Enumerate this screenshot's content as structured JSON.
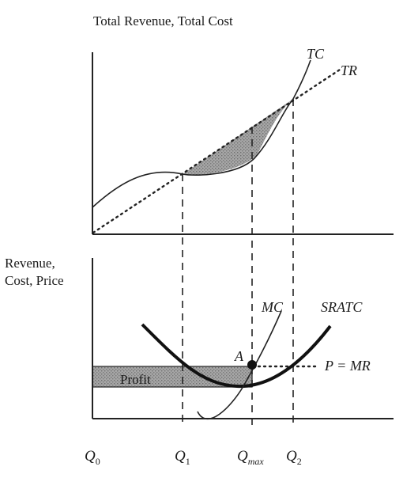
{
  "top_panel": {
    "y_axis_label": "Total Revenue, Total Cost",
    "curves": {
      "tc": "TC",
      "tr": "TR"
    }
  },
  "bottom_panel": {
    "y_axis_label_line1": "Revenue,",
    "y_axis_label_line2": "Cost, Price",
    "curves": {
      "mc": "MC",
      "atc": "SRATC",
      "mr": "P = MR"
    },
    "point_label": "A",
    "area_label": "Profit"
  },
  "x_axis": {
    "q0": {
      "base": "Q",
      "sub": "0"
    },
    "q1": {
      "base": "Q",
      "sub": "1"
    },
    "qmax": {
      "base": "Q",
      "sub": "max"
    },
    "q2": {
      "base": "Q",
      "sub": "2"
    }
  },
  "colors": {
    "shade": "#9a9a9a",
    "ink": "#222222"
  }
}
